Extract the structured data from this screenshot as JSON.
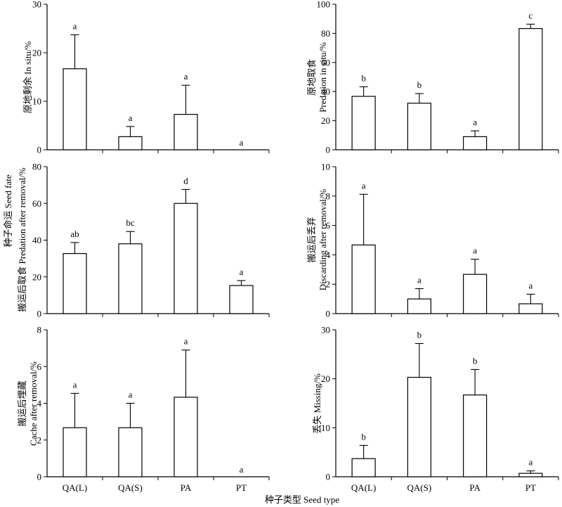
{
  "figure": {
    "shared_xlabel": "种子类型 Seed type",
    "side_label": "种子命运 Seed fate"
  },
  "chart_data": [
    {
      "type": "bar",
      "categories": [
        "QA(L)",
        "QA(S)",
        "PA",
        "PT"
      ],
      "values": [
        16.7,
        2.7,
        7.3,
        0
      ],
      "errors": [
        7.0,
        2.1,
        6.0,
        0
      ],
      "letters": [
        "a",
        "a",
        "a",
        "a"
      ],
      "ylabel_lines": [
        "原地剩余 In situ/%"
      ],
      "ylim": [
        0,
        30
      ],
      "yticks": [
        0,
        10,
        20,
        30
      ],
      "show_xticklabels": false
    },
    {
      "type": "bar",
      "categories": [
        "QA(L)",
        "QA(S)",
        "PA",
        "PT"
      ],
      "values": [
        36.7,
        32.0,
        9.0,
        83.3
      ],
      "errors": [
        6.6,
        6.6,
        4.0,
        3.0
      ],
      "letters": [
        "b",
        "b",
        "a",
        "c"
      ],
      "ylabel_lines": [
        "原地取食",
        "Predation in situ/%"
      ],
      "ylim": [
        0,
        100
      ],
      "yticks": [
        0,
        20,
        40,
        60,
        80,
        100
      ],
      "show_xticklabels": false
    },
    {
      "type": "bar",
      "categories": [
        "QA(L)",
        "QA(S)",
        "PA",
        "PT"
      ],
      "values": [
        32.7,
        38.0,
        60.0,
        15.3
      ],
      "errors": [
        6.0,
        6.7,
        7.6,
        2.7
      ],
      "letters": [
        "ab",
        "bc",
        "d",
        "a"
      ],
      "ylabel_lines": [
        "搬运后取食 Predation after removal/%"
      ],
      "ylim": [
        0,
        80
      ],
      "yticks": [
        0,
        20,
        40,
        60,
        80
      ],
      "show_xticklabels": false
    },
    {
      "type": "bar",
      "categories": [
        "QA(L)",
        "QA(S)",
        "PA",
        "PT"
      ],
      "values": [
        4.67,
        1.0,
        2.67,
        0.67
      ],
      "errors": [
        3.45,
        0.7,
        1.03,
        0.65
      ],
      "letters": [
        "a",
        "a",
        "a",
        "a"
      ],
      "ylabel_lines": [
        "搬运后丢弃",
        "Discarding after removal/%"
      ],
      "ylim": [
        0,
        10
      ],
      "yticks": [
        0,
        2,
        4,
        6,
        8,
        10
      ],
      "show_xticklabels": false
    },
    {
      "type": "bar",
      "categories": [
        "QA(L)",
        "QA(S)",
        "PA",
        "PT"
      ],
      "values": [
        2.67,
        2.67,
        4.33,
        0
      ],
      "errors": [
        1.87,
        1.33,
        2.57,
        0
      ],
      "letters": [
        "a",
        "a",
        "a",
        "a"
      ],
      "ylabel_lines": [
        "搬运后埋藏",
        "Cache after removal/%"
      ],
      "ylim": [
        0,
        8
      ],
      "yticks": [
        0,
        2,
        4,
        6,
        8
      ],
      "show_xticklabels": true
    },
    {
      "type": "bar",
      "categories": [
        "QA(L)",
        "QA(S)",
        "PA",
        "PT"
      ],
      "values": [
        3.7,
        20.3,
        16.7,
        0.7
      ],
      "errors": [
        2.7,
        6.9,
        5.2,
        0.5
      ],
      "letters": [
        "b",
        "b",
        "b",
        "a"
      ],
      "ylabel_lines": [
        "丢失 Missing/%"
      ],
      "ylim": [
        0,
        30
      ],
      "yticks": [
        0,
        10,
        20,
        30
      ],
      "show_xticklabels": true
    }
  ]
}
